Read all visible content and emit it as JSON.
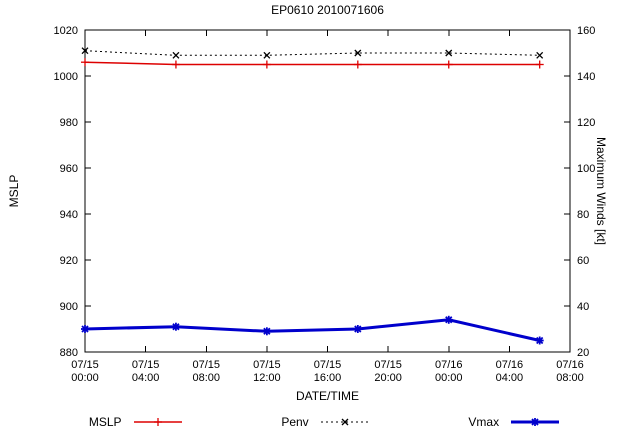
{
  "chart_data": {
    "type": "line",
    "title": "EP0610 2010071606",
    "xlabel": "DATE/TIME",
    "ylabel_left": "MSLP",
    "ylabel_right": "Maximum Winds [kt]",
    "grid": false,
    "legend_position": "bottom",
    "xlim": [
      0,
      32
    ],
    "x_ticks": [
      {
        "hour": 0,
        "line1": "07/15",
        "line2": "00:00"
      },
      {
        "hour": 4,
        "line1": "07/15",
        "line2": "04:00"
      },
      {
        "hour": 8,
        "line1": "07/15",
        "line2": "08:00"
      },
      {
        "hour": 12,
        "line1": "07/15",
        "line2": "12:00"
      },
      {
        "hour": 16,
        "line1": "07/15",
        "line2": "16:00"
      },
      {
        "hour": 20,
        "line1": "07/15",
        "line2": "20:00"
      },
      {
        "hour": 24,
        "line1": "07/16",
        "line2": "00:00"
      },
      {
        "hour": 28,
        "line1": "07/16",
        "line2": "04:00"
      },
      {
        "hour": 32,
        "line1": "07/16",
        "line2": "08:00"
      }
    ],
    "ylim_left": [
      880,
      1020
    ],
    "y_ticks_left": [
      880,
      900,
      920,
      940,
      960,
      980,
      1000,
      1020
    ],
    "ylim_right": [
      20,
      160
    ],
    "y_ticks_right": [
      20,
      40,
      60,
      80,
      100,
      120,
      140,
      160
    ],
    "series": [
      {
        "name": "MSLP",
        "axis": "left",
        "color": "#dd0000",
        "line": "solid",
        "width": 1.5,
        "marker": "plus",
        "x_hours": [
          0,
          6,
          12,
          18,
          24,
          30
        ],
        "values": [
          1006,
          1005,
          1005,
          1005,
          1005,
          1005
        ]
      },
      {
        "name": "Penv",
        "axis": "left",
        "color": "#000000",
        "line": "dotted",
        "width": 1,
        "marker": "cross",
        "x_hours": [
          0,
          6,
          12,
          18,
          24,
          30
        ],
        "values": [
          1011,
          1009,
          1009,
          1010,
          1010,
          1009
        ]
      },
      {
        "name": "Vmax",
        "axis": "right",
        "color": "#0000cc",
        "line": "solid",
        "width": 3,
        "marker": "asterisk",
        "x_hours": [
          0,
          6,
          12,
          18,
          24,
          30
        ],
        "values": [
          30,
          31,
          29,
          30,
          34,
          25
        ]
      }
    ]
  }
}
